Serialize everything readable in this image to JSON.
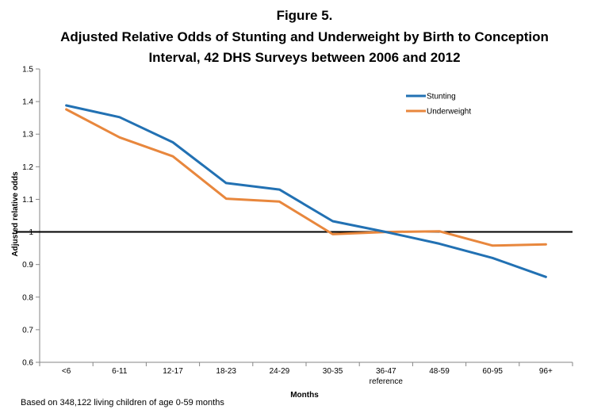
{
  "chart_data": {
    "type": "line",
    "title": [
      "Figure 5.",
      "Adjusted Relative Odds of Stunting and Underweight by Birth to Conception",
      "Interval, 42 DHS Surveys between 2006 and 2012"
    ],
    "xlabel": "Months",
    "ylabel": "Adjusted relative odds",
    "categories": [
      "<6",
      "6-11",
      "12-17",
      "18-23",
      "24-29",
      "30-35",
      "36-47",
      "48-59",
      "60-95",
      "96+"
    ],
    "category_sublabels": [
      "",
      "",
      "",
      "",
      "",
      "",
      "reference",
      "",
      "",
      ""
    ],
    "ylim": [
      0.6,
      1.5
    ],
    "yticks": [
      0.6,
      0.7,
      0.8,
      0.9,
      1,
      1.1,
      1.2,
      1.3,
      1.4,
      1.5
    ],
    "ytick_labels": [
      "0.6",
      "0.7",
      "0.8",
      "0.9",
      "1",
      "1.1",
      "1.2",
      "1.3",
      "1.4",
      "1.5"
    ],
    "reference_line": 1,
    "grid": false,
    "legend_position": "top-right",
    "series": [
      {
        "name": "Stunting",
        "color": "#2271b3",
        "values": [
          1.388,
          1.352,
          1.275,
          1.15,
          1.13,
          1.033,
          1.0,
          0.964,
          0.92,
          0.862
        ]
      },
      {
        "name": "Underweight",
        "color": "#e8873d",
        "values": [
          1.376,
          1.29,
          1.232,
          1.102,
          1.093,
          0.993,
          1.0,
          1.002,
          0.958,
          0.962
        ]
      }
    ],
    "footnote": "Based on  348,122 living children of age 0-59 months"
  }
}
